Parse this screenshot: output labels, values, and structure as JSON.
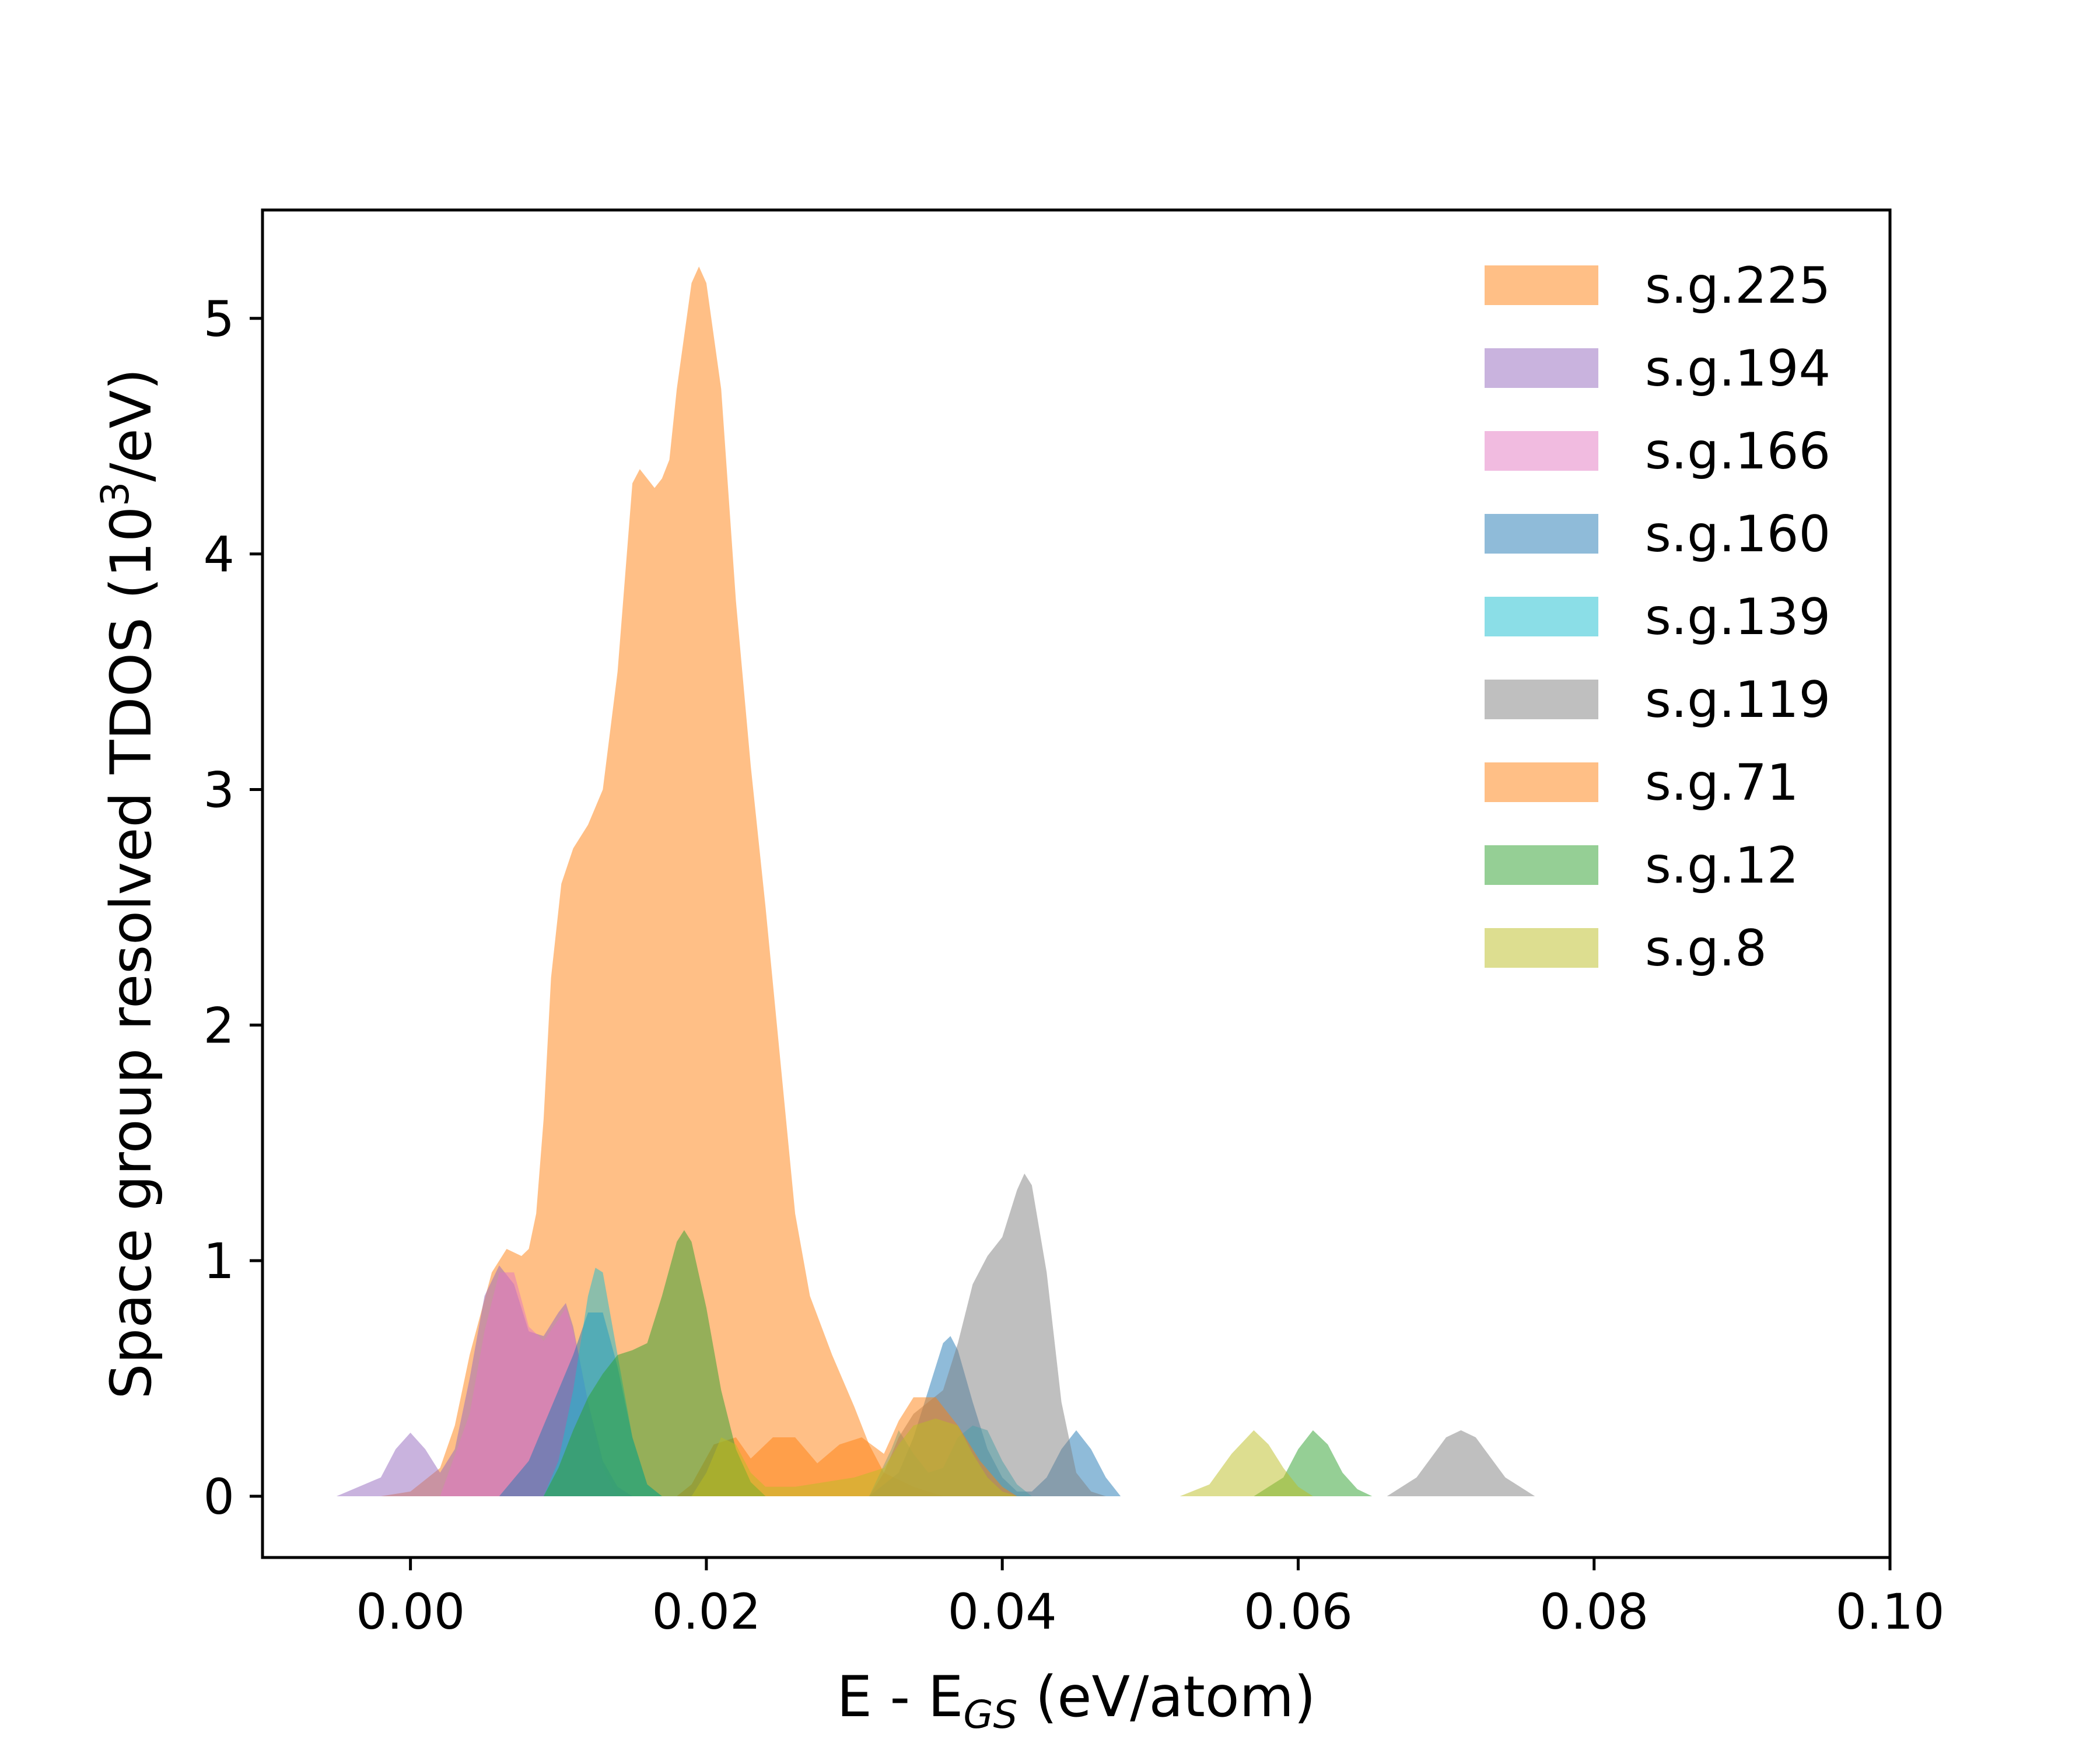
{
  "chart_data": {
    "type": "area",
    "xlabel": "E - E",
    "xlabel_sub": "GS",
    "xlabel_unit": " (eV/atom)",
    "ylabel": "Space group resolved TDOS (10",
    "ylabel_sup": "3",
    "ylabel_unit": "/eV)",
    "xlim": [
      -0.01,
      0.1
    ],
    "ylim": [
      -0.26,
      5.46
    ],
    "xticks": [
      0.0,
      0.02,
      0.04,
      0.06,
      0.08,
      0.1
    ],
    "xtick_labels": [
      "0.00",
      "0.02",
      "0.04",
      "0.06",
      "0.08",
      "0.10"
    ],
    "yticks": [
      0,
      1,
      2,
      3,
      4,
      5
    ],
    "ytick_labels": [
      "0",
      "1",
      "2",
      "3",
      "4",
      "5"
    ],
    "grid": false,
    "legend_position": "top-right",
    "series": [
      {
        "name": "s.g.225",
        "color": "#ff7f0e",
        "points": [
          [
            -0.002,
            0
          ],
          [
            0.0,
            0.02
          ],
          [
            0.002,
            0.12
          ],
          [
            0.003,
            0.3
          ],
          [
            0.004,
            0.6
          ],
          [
            0.0055,
            0.95
          ],
          [
            0.0065,
            1.05
          ],
          [
            0.0075,
            1.02
          ],
          [
            0.008,
            1.05
          ],
          [
            0.0085,
            1.2
          ],
          [
            0.009,
            1.6
          ],
          [
            0.0095,
            2.2
          ],
          [
            0.0102,
            2.6
          ],
          [
            0.011,
            2.75
          ],
          [
            0.012,
            2.85
          ],
          [
            0.013,
            3.0
          ],
          [
            0.014,
            3.5
          ],
          [
            0.015,
            4.3
          ],
          [
            0.0155,
            4.36
          ],
          [
            0.016,
            4.32
          ],
          [
            0.0165,
            4.28
          ],
          [
            0.017,
            4.32
          ],
          [
            0.0175,
            4.4
          ],
          [
            0.018,
            4.7
          ],
          [
            0.019,
            5.15
          ],
          [
            0.0195,
            5.22
          ],
          [
            0.02,
            5.15
          ],
          [
            0.021,
            4.7
          ],
          [
            0.022,
            3.8
          ],
          [
            0.023,
            3.1
          ],
          [
            0.024,
            2.5
          ],
          [
            0.025,
            1.85
          ],
          [
            0.026,
            1.2
          ],
          [
            0.027,
            0.85
          ],
          [
            0.0285,
            0.6
          ],
          [
            0.03,
            0.38
          ],
          [
            0.031,
            0.22
          ],
          [
            0.032,
            0.1
          ],
          [
            0.034,
            0.04
          ],
          [
            0.036,
            0
          ]
        ]
      },
      {
        "name": "s.g.194",
        "color": "#9467bd",
        "points": [
          [
            -0.005,
            0
          ],
          [
            -0.002,
            0.08
          ],
          [
            -0.001,
            0.2
          ],
          [
            0.0,
            0.27
          ],
          [
            0.001,
            0.2
          ],
          [
            0.002,
            0.1
          ],
          [
            0.003,
            0.2
          ],
          [
            0.004,
            0.5
          ],
          [
            0.005,
            0.85
          ],
          [
            0.006,
            0.98
          ],
          [
            0.007,
            0.9
          ],
          [
            0.008,
            0.7
          ],
          [
            0.009,
            0.68
          ],
          [
            0.01,
            0.78
          ],
          [
            0.0105,
            0.82
          ],
          [
            0.011,
            0.72
          ],
          [
            0.012,
            0.4
          ],
          [
            0.013,
            0.15
          ],
          [
            0.014,
            0.04
          ],
          [
            0.015,
            0
          ]
        ]
      },
      {
        "name": "s.g.166",
        "color": "#e377c2",
        "points": [
          [
            0.002,
            0
          ],
          [
            0.004,
            0.35
          ],
          [
            0.005,
            0.7
          ],
          [
            0.006,
            0.95
          ],
          [
            0.007,
            0.95
          ],
          [
            0.008,
            0.72
          ],
          [
            0.009,
            0.66
          ],
          [
            0.01,
            0.75
          ],
          [
            0.0105,
            0.8
          ],
          [
            0.011,
            0.7
          ],
          [
            0.012,
            0.4
          ],
          [
            0.013,
            0.12
          ],
          [
            0.014,
            0
          ]
        ]
      },
      {
        "name": "s.g.160",
        "color": "#1f77b4",
        "points": [
          [
            0.006,
            0
          ],
          [
            0.008,
            0.15
          ],
          [
            0.009,
            0.3
          ],
          [
            0.01,
            0.45
          ],
          [
            0.011,
            0.6
          ],
          [
            0.012,
            0.78
          ],
          [
            0.013,
            0.78
          ],
          [
            0.014,
            0.55
          ],
          [
            0.015,
            0.25
          ],
          [
            0.016,
            0.05
          ],
          [
            0.017,
            0
          ],
          [
            0.031,
            0
          ],
          [
            0.033,
            0.1
          ],
          [
            0.034,
            0.25
          ],
          [
            0.035,
            0.45
          ],
          [
            0.036,
            0.65
          ],
          [
            0.0365,
            0.68
          ],
          [
            0.037,
            0.62
          ],
          [
            0.038,
            0.4
          ],
          [
            0.039,
            0.2
          ],
          [
            0.04,
            0.08
          ],
          [
            0.041,
            0.02
          ],
          [
            0.042,
            0.02
          ],
          [
            0.043,
            0.08
          ],
          [
            0.044,
            0.2
          ],
          [
            0.045,
            0.28
          ],
          [
            0.046,
            0.2
          ],
          [
            0.047,
            0.08
          ],
          [
            0.048,
            0
          ]
        ]
      },
      {
        "name": "s.g.139",
        "color": "#17becf",
        "points": [
          [
            0.009,
            0
          ],
          [
            0.01,
            0.15
          ],
          [
            0.011,
            0.45
          ],
          [
            0.012,
            0.85
          ],
          [
            0.0125,
            0.97
          ],
          [
            0.013,
            0.95
          ],
          [
            0.014,
            0.6
          ],
          [
            0.015,
            0.25
          ],
          [
            0.016,
            0.05
          ],
          [
            0.017,
            0
          ],
          [
            0.031,
            0
          ],
          [
            0.0325,
            0.2
          ],
          [
            0.033,
            0.28
          ],
          [
            0.034,
            0.18
          ],
          [
            0.035,
            0.1
          ],
          [
            0.036,
            0.12
          ],
          [
            0.037,
            0.25
          ],
          [
            0.038,
            0.3
          ],
          [
            0.039,
            0.28
          ],
          [
            0.04,
            0.15
          ],
          [
            0.041,
            0.05
          ],
          [
            0.042,
            0
          ]
        ]
      },
      {
        "name": "s.g.119",
        "color": "#7f7f7f",
        "points": [
          [
            0.031,
            0
          ],
          [
            0.032,
            0.1
          ],
          [
            0.033,
            0.25
          ],
          [
            0.034,
            0.35
          ],
          [
            0.035,
            0.4
          ],
          [
            0.036,
            0.45
          ],
          [
            0.037,
            0.65
          ],
          [
            0.038,
            0.9
          ],
          [
            0.039,
            1.02
          ],
          [
            0.04,
            1.1
          ],
          [
            0.041,
            1.3
          ],
          [
            0.0415,
            1.37
          ],
          [
            0.042,
            1.32
          ],
          [
            0.043,
            0.95
          ],
          [
            0.044,
            0.4
          ],
          [
            0.045,
            0.1
          ],
          [
            0.046,
            0.02
          ],
          [
            0.047,
            0
          ],
          [
            0.066,
            0
          ],
          [
            0.068,
            0.08
          ],
          [
            0.07,
            0.25
          ],
          [
            0.071,
            0.28
          ],
          [
            0.072,
            0.25
          ],
          [
            0.074,
            0.08
          ],
          [
            0.076,
            0
          ]
        ]
      },
      {
        "name": "s.g.71",
        "color": "#ff7f0e",
        "points": [
          [
            0.018,
            0
          ],
          [
            0.019,
            0.05
          ],
          [
            0.0205,
            0.22
          ],
          [
            0.022,
            0.25
          ],
          [
            0.023,
            0.16
          ],
          [
            0.0245,
            0.25
          ],
          [
            0.026,
            0.25
          ],
          [
            0.0275,
            0.14
          ],
          [
            0.029,
            0.22
          ],
          [
            0.0305,
            0.25
          ],
          [
            0.032,
            0.18
          ],
          [
            0.033,
            0.32
          ],
          [
            0.034,
            0.42
          ],
          [
            0.0355,
            0.42
          ],
          [
            0.037,
            0.3
          ],
          [
            0.0385,
            0.15
          ],
          [
            0.04,
            0.04
          ],
          [
            0.041,
            0
          ]
        ]
      },
      {
        "name": "s.g.12",
        "color": "#2ca02c",
        "points": [
          [
            0.009,
            0
          ],
          [
            0.01,
            0.12
          ],
          [
            0.011,
            0.28
          ],
          [
            0.012,
            0.42
          ],
          [
            0.013,
            0.52
          ],
          [
            0.014,
            0.6
          ],
          [
            0.015,
            0.62
          ],
          [
            0.016,
            0.65
          ],
          [
            0.017,
            0.85
          ],
          [
            0.018,
            1.08
          ],
          [
            0.0185,
            1.13
          ],
          [
            0.019,
            1.08
          ],
          [
            0.02,
            0.8
          ],
          [
            0.021,
            0.45
          ],
          [
            0.022,
            0.2
          ],
          [
            0.023,
            0.06
          ],
          [
            0.024,
            0
          ],
          [
            0.057,
            0
          ],
          [
            0.059,
            0.08
          ],
          [
            0.06,
            0.2
          ],
          [
            0.061,
            0.28
          ],
          [
            0.062,
            0.22
          ],
          [
            0.063,
            0.1
          ],
          [
            0.064,
            0.03
          ],
          [
            0.065,
            0
          ]
        ]
      },
      {
        "name": "s.g.8",
        "color": "#bcbd22",
        "points": [
          [
            0.019,
            0
          ],
          [
            0.02,
            0.1
          ],
          [
            0.021,
            0.25
          ],
          [
            0.022,
            0.22
          ],
          [
            0.023,
            0.1
          ],
          [
            0.024,
            0.04
          ],
          [
            0.026,
            0.04
          ],
          [
            0.028,
            0.06
          ],
          [
            0.03,
            0.08
          ],
          [
            0.032,
            0.12
          ],
          [
            0.033,
            0.22
          ],
          [
            0.034,
            0.3
          ],
          [
            0.0355,
            0.33
          ],
          [
            0.037,
            0.3
          ],
          [
            0.038,
            0.18
          ],
          [
            0.039,
            0.08
          ],
          [
            0.04,
            0.02
          ],
          [
            0.041,
            0
          ],
          [
            0.052,
            0
          ],
          [
            0.054,
            0.05
          ],
          [
            0.0555,
            0.18
          ],
          [
            0.057,
            0.28
          ],
          [
            0.058,
            0.22
          ],
          [
            0.059,
            0.12
          ],
          [
            0.06,
            0.04
          ],
          [
            0.061,
            0
          ]
        ]
      }
    ]
  }
}
